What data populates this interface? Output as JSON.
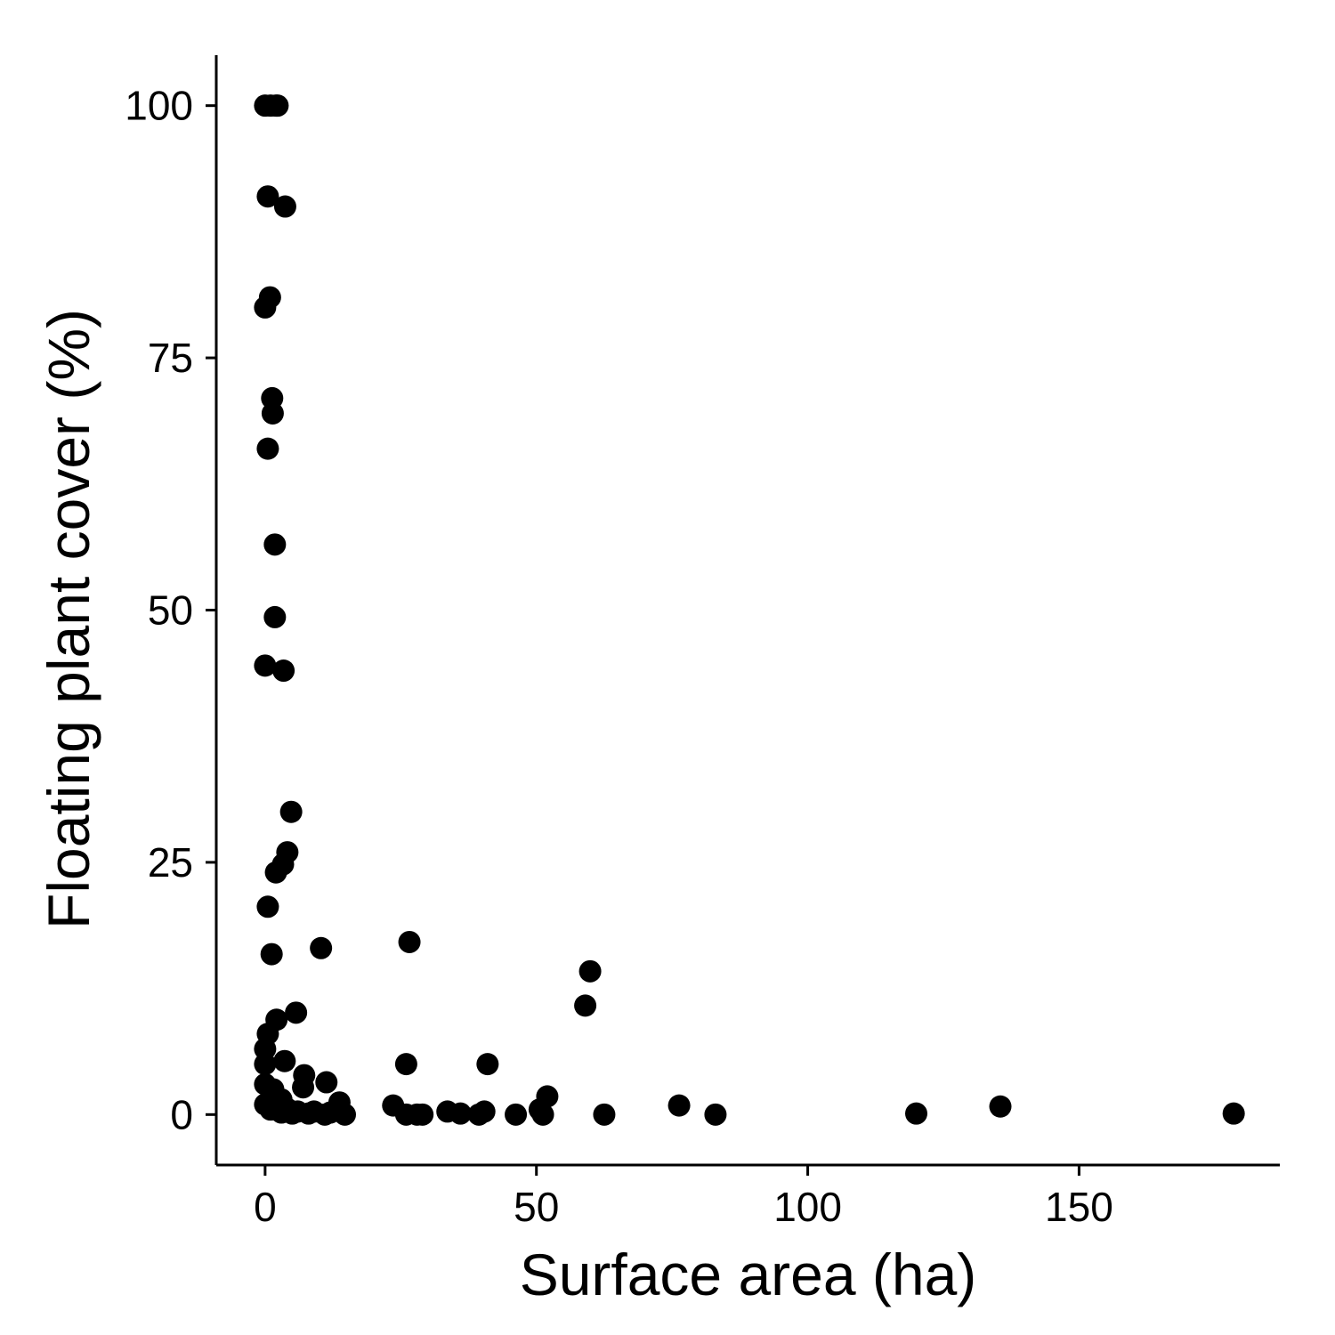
{
  "chart_data": {
    "type": "scatter",
    "title": "",
    "xlabel": "Surface area (ha)",
    "ylabel": "Floating plant cover (%)",
    "xlim": [
      -9,
      187
    ],
    "ylim": [
      -5,
      105
    ],
    "xticks": [
      0,
      50,
      100,
      150
    ],
    "yticks": [
      0,
      25,
      50,
      75,
      100
    ],
    "grid": false,
    "legend": "none",
    "color": "#000000",
    "points": [
      {
        "x": 0,
        "y": 100
      },
      {
        "x": 1,
        "y": 100
      },
      {
        "x": 2,
        "y": 100
      },
      {
        "x": 2.3,
        "y": 100
      },
      {
        "x": 0.5,
        "y": 91
      },
      {
        "x": 3.7,
        "y": 90
      },
      {
        "x": 0.9,
        "y": 81
      },
      {
        "x": 0,
        "y": 80
      },
      {
        "x": 1.3,
        "y": 71
      },
      {
        "x": 1.4,
        "y": 69.5
      },
      {
        "x": 0.5,
        "y": 66
      },
      {
        "x": 1.8,
        "y": 56.5
      },
      {
        "x": 1.8,
        "y": 49.3
      },
      {
        "x": 0,
        "y": 44.5
      },
      {
        "x": 3.4,
        "y": 44
      },
      {
        "x": 4.8,
        "y": 30
      },
      {
        "x": 4.1,
        "y": 26
      },
      {
        "x": 3.3,
        "y": 24.8
      },
      {
        "x": 2,
        "y": 24
      },
      {
        "x": 0.5,
        "y": 20.6
      },
      {
        "x": 10.3,
        "y": 16.5
      },
      {
        "x": 1.2,
        "y": 15.9
      },
      {
        "x": 26.6,
        "y": 17.1
      },
      {
        "x": 59.9,
        "y": 14.2
      },
      {
        "x": 59,
        "y": 10.8
      },
      {
        "x": 5.7,
        "y": 10.1
      },
      {
        "x": 2.1,
        "y": 9.4
      },
      {
        "x": 0.5,
        "y": 8
      },
      {
        "x": 0,
        "y": 6.5
      },
      {
        "x": 0,
        "y": 5
      },
      {
        "x": 3.6,
        "y": 5.3
      },
      {
        "x": 7.2,
        "y": 3.9
      },
      {
        "x": 7,
        "y": 2.7
      },
      {
        "x": 11.3,
        "y": 3.2
      },
      {
        "x": 26,
        "y": 5
      },
      {
        "x": 41,
        "y": 5
      },
      {
        "x": 0,
        "y": 3
      },
      {
        "x": 1.5,
        "y": 2.5
      },
      {
        "x": 3,
        "y": 1.5
      },
      {
        "x": 0,
        "y": 1
      },
      {
        "x": 1,
        "y": 0.5
      },
      {
        "x": 2,
        "y": 0.5
      },
      {
        "x": 3,
        "y": 0.2
      },
      {
        "x": 4,
        "y": 0.6
      },
      {
        "x": 5,
        "y": 0.1
      },
      {
        "x": 6,
        "y": 0.3
      },
      {
        "x": 8,
        "y": 0.1
      },
      {
        "x": 9,
        "y": 0.3
      },
      {
        "x": 11,
        "y": 0
      },
      {
        "x": 12,
        "y": 0.2
      },
      {
        "x": 13.7,
        "y": 1.2
      },
      {
        "x": 14.7,
        "y": 0
      },
      {
        "x": 23.6,
        "y": 0.9
      },
      {
        "x": 26,
        "y": 0
      },
      {
        "x": 28,
        "y": 0
      },
      {
        "x": 29,
        "y": 0
      },
      {
        "x": 33.6,
        "y": 0.3
      },
      {
        "x": 36,
        "y": 0.1
      },
      {
        "x": 39.4,
        "y": 0
      },
      {
        "x": 40.4,
        "y": 0.3
      },
      {
        "x": 46.2,
        "y": 0
      },
      {
        "x": 50.6,
        "y": 0.5
      },
      {
        "x": 51.2,
        "y": 0
      },
      {
        "x": 52,
        "y": 1.8
      },
      {
        "x": 62.5,
        "y": 0
      },
      {
        "x": 76.3,
        "y": 0.9
      },
      {
        "x": 83,
        "y": 0
      },
      {
        "x": 120,
        "y": 0.1
      },
      {
        "x": 135.5,
        "y": 0.8
      },
      {
        "x": 178.5,
        "y": 0.1
      }
    ]
  }
}
